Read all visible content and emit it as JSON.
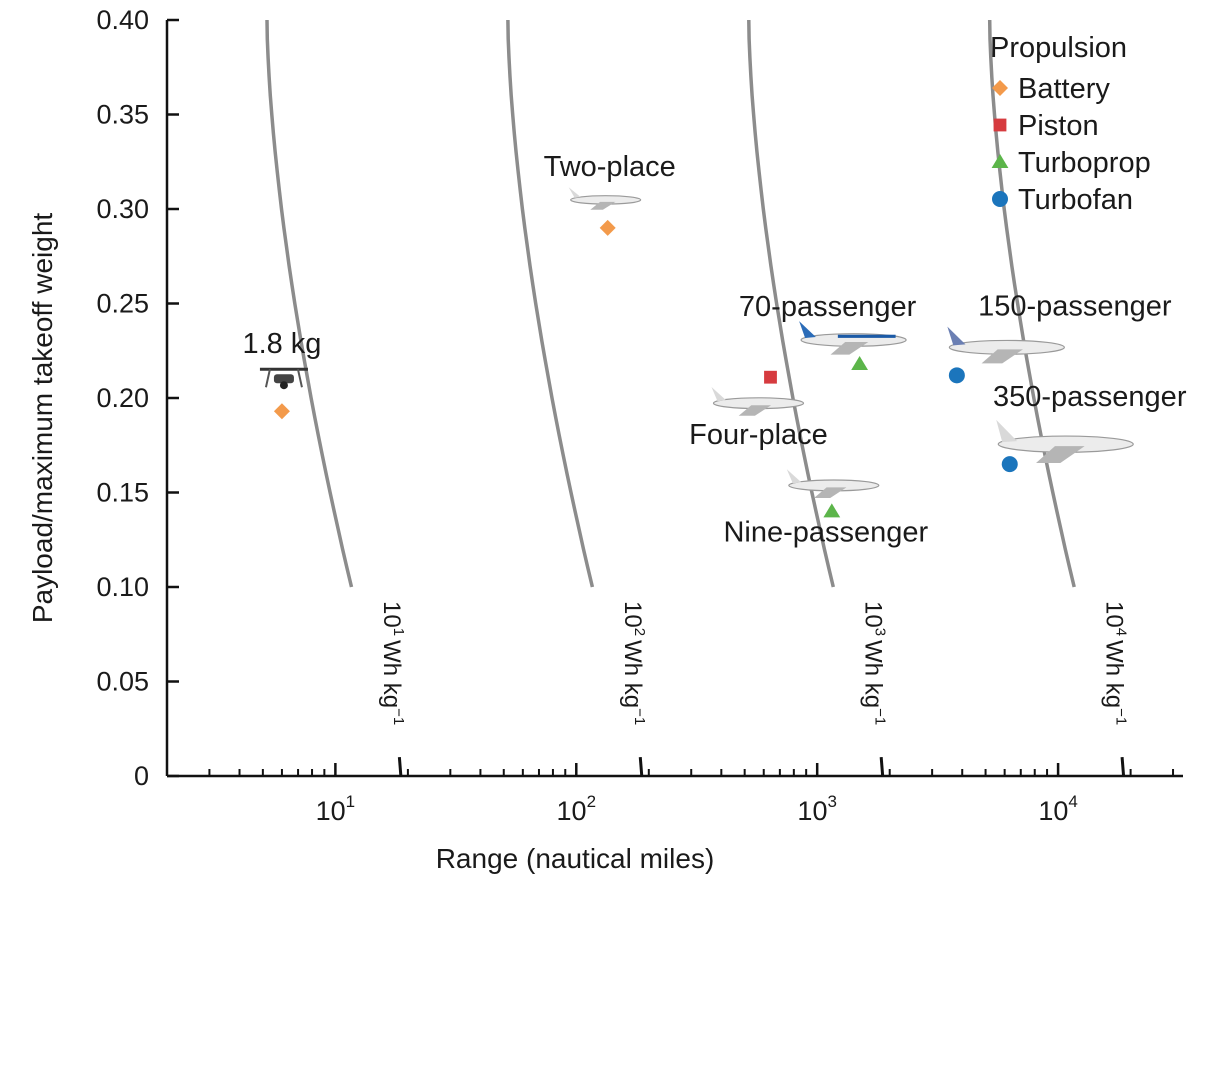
{
  "chart_data": {
    "type": "scatter",
    "title": "",
    "xlabel": "Range (nautical miles)",
    "ylabel": "Payload/maximum takeoff weight",
    "xscale": "log",
    "xlim": [
      2,
      33000
    ],
    "ylim": [
      0,
      0.4
    ],
    "x_major_ticks": [
      {
        "value": 10,
        "base": "10",
        "exp": "1"
      },
      {
        "value": 100,
        "base": "10",
        "exp": "2"
      },
      {
        "value": 1000,
        "base": "10",
        "exp": "3"
      },
      {
        "value": 10000,
        "base": "10",
        "exp": "4"
      }
    ],
    "x_minor_ticks": [
      2,
      3,
      4,
      5,
      6,
      7,
      8,
      9,
      20,
      30,
      40,
      50,
      60,
      70,
      80,
      90,
      200,
      300,
      400,
      500,
      600,
      700,
      800,
      900,
      2000,
      3000,
      4000,
      5000,
      6000,
      7000,
      8000,
      9000,
      20000,
      30000
    ],
    "y_ticks": [
      {
        "value": 0,
        "label": "0"
      },
      {
        "value": 0.05,
        "label": "0.05"
      },
      {
        "value": 0.1,
        "label": "0.10"
      },
      {
        "value": 0.15,
        "label": "0.15"
      },
      {
        "value": 0.2,
        "label": "0.20"
      },
      {
        "value": 0.25,
        "label": "0.25"
      },
      {
        "value": 0.3,
        "label": "0.30"
      },
      {
        "value": 0.35,
        "label": "0.35"
      },
      {
        "value": 0.4,
        "label": "0.40"
      }
    ],
    "legend": {
      "title": "Propulsion",
      "placement": "top-right",
      "entries": [
        {
          "name": "Battery",
          "marker": "diamond",
          "color": "#f39a4b"
        },
        {
          "name": "Piston",
          "marker": "square",
          "color": "#d63b3f"
        },
        {
          "name": "Turboprop",
          "marker": "triangle",
          "color": "#5cb54a"
        },
        {
          "name": "Turbofan",
          "marker": "circle",
          "color": "#1b75bc"
        }
      ]
    },
    "points": [
      {
        "label": "1.8 kg",
        "x": 6,
        "y": 0.193,
        "propulsion": "Battery"
      },
      {
        "label": "Two-place",
        "x": 135,
        "y": 0.29,
        "propulsion": "Battery"
      },
      {
        "label": "Four-place",
        "x": 640,
        "y": 0.211,
        "propulsion": "Piston"
      },
      {
        "label": "70-passenger",
        "x": 1500,
        "y": 0.218,
        "propulsion": "Turboprop"
      },
      {
        "label": "Nine-passenger",
        "x": 1150,
        "y": 0.14,
        "propulsion": "Turboprop"
      },
      {
        "label": "150-passenger",
        "x": 3800,
        "y": 0.212,
        "propulsion": "Turbofan"
      },
      {
        "label": "350-passenger",
        "x": 6300,
        "y": 0.165,
        "propulsion": "Turbofan"
      }
    ],
    "energy_curves": [
      {
        "base": "10",
        "exp": "1",
        "unit": "Wh kg",
        "unit_exp": "−1",
        "x_at_zero": 18.7,
        "x_at_top": 5.2
      },
      {
        "base": "10",
        "exp": "2",
        "unit": "Wh kg",
        "unit_exp": "−1",
        "x_at_zero": 187,
        "x_at_top": 52
      },
      {
        "base": "10",
        "exp": "3",
        "unit": "Wh kg",
        "unit_exp": "−1",
        "x_at_zero": 1870,
        "x_at_top": 520
      },
      {
        "base": "10",
        "exp": "4",
        "unit": "Wh kg",
        "unit_exp": "−1",
        "x_at_zero": 18700,
        "x_at_top": 5200
      }
    ],
    "curve_color": "#8c8c8c",
    "grid": false
  }
}
